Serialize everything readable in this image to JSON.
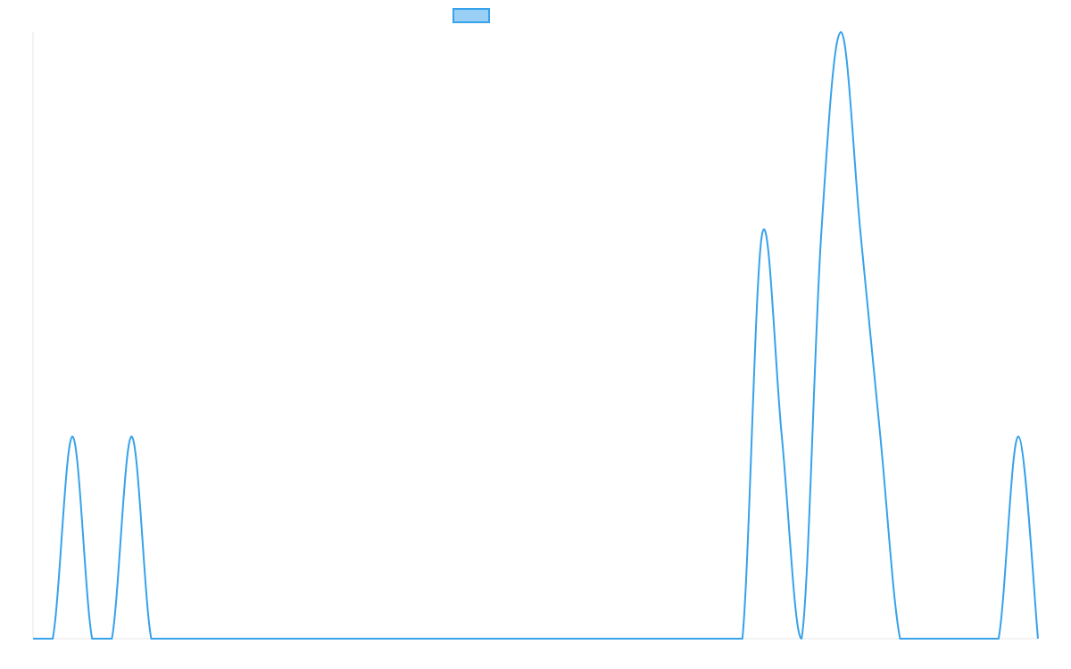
{
  "chart_data": {
    "type": "line",
    "title": "",
    "xlabel": "",
    "ylabel": "",
    "grid": false,
    "legend": {
      "position": "top-center",
      "entries": [
        {
          "name": "",
          "color": "#36a2eb",
          "fill": "#9ad0f5"
        }
      ]
    },
    "xlim": [
      0,
      51
    ],
    "ylim": [
      0,
      3
    ],
    "series": [
      {
        "name": "",
        "color": "#36a2eb",
        "points": [
          [
            0,
            0
          ],
          [
            1,
            0
          ],
          [
            2,
            1
          ],
          [
            3,
            0
          ],
          [
            4,
            0
          ],
          [
            5,
            1
          ],
          [
            6,
            0
          ],
          [
            7,
            0
          ],
          [
            8,
            0
          ],
          [
            9,
            0
          ],
          [
            10,
            0
          ],
          [
            11,
            0
          ],
          [
            12,
            0
          ],
          [
            13,
            0
          ],
          [
            14,
            0
          ],
          [
            15,
            0
          ],
          [
            16,
            0
          ],
          [
            17,
            0
          ],
          [
            18,
            0
          ],
          [
            19,
            0
          ],
          [
            20,
            0
          ],
          [
            21,
            0
          ],
          [
            22,
            0
          ],
          [
            23,
            0
          ],
          [
            24,
            0
          ],
          [
            25,
            0
          ],
          [
            26,
            0
          ],
          [
            27,
            0
          ],
          [
            28,
            0
          ],
          [
            29,
            0
          ],
          [
            30,
            0
          ],
          [
            31,
            0
          ],
          [
            32,
            0
          ],
          [
            33,
            0
          ],
          [
            34,
            0
          ],
          [
            35,
            0
          ],
          [
            36,
            0
          ],
          [
            37,
            2
          ],
          [
            38,
            1
          ],
          [
            39,
            0
          ],
          [
            40,
            2
          ],
          [
            41,
            3
          ],
          [
            42,
            2
          ],
          [
            43,
            1
          ],
          [
            44,
            0
          ],
          [
            45,
            0
          ],
          [
            46,
            0
          ],
          [
            47,
            0
          ],
          [
            48,
            0
          ],
          [
            49,
            0
          ],
          [
            50,
            1
          ],
          [
            51,
            0
          ]
        ]
      }
    ]
  }
}
